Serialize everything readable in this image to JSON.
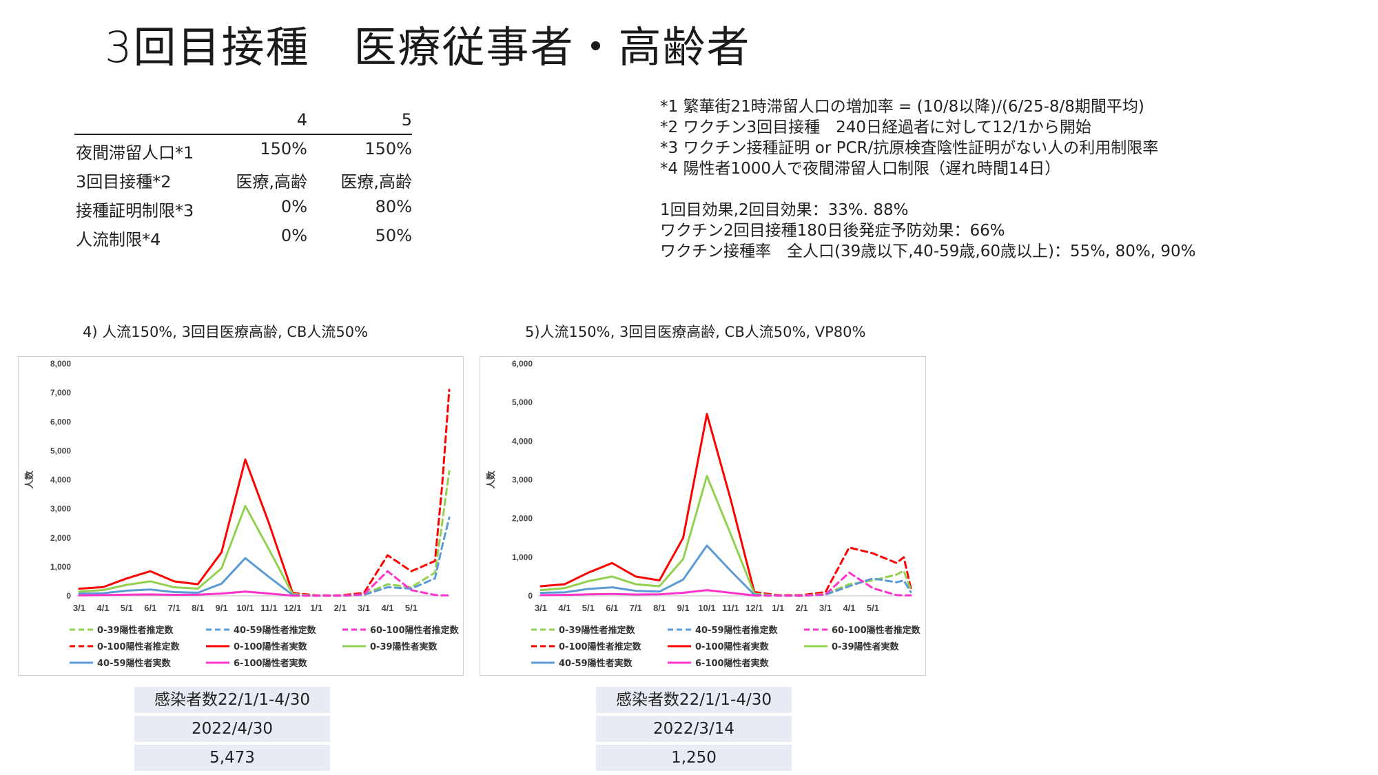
{
  "title": "3回目接種　医療従事者・高齢者",
  "params_table": {
    "columns": [
      "",
      "4",
      "5"
    ],
    "rows": [
      [
        "夜間滞留人口*1",
        "150%",
        "150%"
      ],
      [
        "3回目接種*2",
        "医療,高齢",
        "医療,高齢"
      ],
      [
        "接種証明制限*3",
        "0%",
        "80%"
      ],
      [
        "人流制限*4",
        "0%",
        "50%"
      ]
    ]
  },
  "notes": [
    "*1 繁華街21時滞留人口の増加率 = (10/8以降)/(6/25-8/8期間平均)",
    "*2 ワクチン3回目接種　240日経過者に対して12/1から開始",
    "*3 ワクチン接種証明 or PCR/抗原検査陰性証明がない人の利用制限率",
    "*4 陽性者1000人で夜間滞留人口制限（遅れ時間14日）",
    "",
    "1回目効果,2回目効果：33%. 88%",
    "ワクチン2回目接種180日後発症予防効果：66%",
    "ワクチン接種率　全人口(39歳以下,40-59歳,60歳以上)：55%, 80%, 90%"
  ],
  "legend": [
    {
      "label": "0-39陽性者推定数",
      "color": "#92d050",
      "dash": true
    },
    {
      "label": "40-59陽性者推定数",
      "color": "#5b9bd5",
      "dash": true
    },
    {
      "label": "60-100陽性者推定数",
      "color": "#ff33cc",
      "dash": true
    },
    {
      "label": "0-100陽性者推定数",
      "color": "#ff0000",
      "dash": true
    },
    {
      "label": "0-100陽性者実数",
      "color": "#ff0000",
      "dash": false
    },
    {
      "label": "0-39陽性者実数",
      "color": "#92d050",
      "dash": false
    },
    {
      "label": "40-59陽性者実数",
      "color": "#5b9bd5",
      "dash": false
    },
    {
      "label": "6-100陽性者実数",
      "color": "#ff33cc",
      "dash": false
    }
  ],
  "stats": [
    {
      "label": "感染者数22/1/1-4/30",
      "date": "2022/4/30",
      "value": "5,473"
    },
    {
      "label": "感染者数22/1/1-4/30",
      "date": "2022/3/14",
      "value": "1,250"
    }
  ],
  "chart_data": [
    {
      "type": "line",
      "title": "4) 人流150%, 3回目医療高齢, CB人流50%",
      "ylabel": "人数",
      "xlabel": "",
      "ylim": [
        0,
        8000
      ],
      "yticks": [
        "0",
        "1,000",
        "2,000",
        "3,000",
        "4,000",
        "5,000",
        "6,000",
        "7,000",
        "8,000"
      ],
      "xticks": [
        "3/1",
        "4/1",
        "5/1",
        "6/1",
        "7/1",
        "8/1",
        "9/1",
        "10/1",
        "11/1",
        "12/1",
        "1/1",
        "2/1",
        "3/1",
        "4/1",
        "5/1"
      ],
      "x_months": [
        0,
        1,
        2,
        3,
        4,
        5,
        6,
        7,
        8,
        9,
        10,
        11,
        12,
        13,
        14,
        15,
        15.3,
        15.6
      ],
      "series": [
        {
          "name": "0-100陽性者実数",
          "color": "#ff0000",
          "dash": false,
          "values": [
            250,
            300,
            600,
            850,
            500,
            400,
            1500,
            4700,
            2500,
            100,
            null,
            null,
            null,
            null,
            null,
            null,
            null,
            null
          ]
        },
        {
          "name": "0-39陽性者実数",
          "color": "#92d050",
          "dash": false,
          "values": [
            150,
            200,
            380,
            500,
            300,
            250,
            950,
            3100,
            1600,
            60,
            null,
            null,
            null,
            null,
            null,
            null,
            null,
            null
          ]
        },
        {
          "name": "40-59陽性者実数",
          "color": "#5b9bd5",
          "dash": false,
          "values": [
            80,
            90,
            180,
            220,
            130,
            110,
            420,
            1300,
            650,
            30,
            null,
            null,
            null,
            null,
            null,
            null,
            null,
            null
          ]
        },
        {
          "name": "6-100陽性者実数",
          "color": "#ff33cc",
          "dash": false,
          "values": [
            20,
            25,
            40,
            50,
            35,
            40,
            80,
            150,
            80,
            10,
            null,
            null,
            null,
            null,
            null,
            null,
            null,
            null
          ]
        },
        {
          "name": "0-100陽性者推定数",
          "color": "#ff0000",
          "dash": true,
          "values": [
            null,
            null,
            null,
            null,
            null,
            null,
            null,
            null,
            null,
            100,
            20,
            20,
            100,
            1400,
            850,
            1200,
            3800,
            7100
          ]
        },
        {
          "name": "0-39陽性者推定数",
          "color": "#92d050",
          "dash": true,
          "values": [
            null,
            null,
            null,
            null,
            null,
            null,
            null,
            null,
            null,
            60,
            10,
            10,
            50,
            400,
            300,
            800,
            2500,
            4300
          ]
        },
        {
          "name": "40-59陽性者推定数",
          "color": "#5b9bd5",
          "dash": true,
          "values": [
            null,
            null,
            null,
            null,
            null,
            null,
            null,
            null,
            null,
            30,
            5,
            5,
            30,
            300,
            250,
            600,
            1700,
            2700
          ]
        },
        {
          "name": "60-100陽性者推定数",
          "color": "#ff33cc",
          "dash": true,
          "values": [
            null,
            null,
            null,
            null,
            null,
            null,
            null,
            null,
            null,
            10,
            5,
            5,
            50,
            850,
            200,
            30,
            20,
            20
          ]
        }
      ]
    },
    {
      "type": "line",
      "title": "5)人流150%, 3回目医療高齢, CB人流50%, VP80%",
      "ylabel": "人数",
      "xlabel": "",
      "ylim": [
        0,
        6000
      ],
      "yticks": [
        "0",
        "1,000",
        "2,000",
        "3,000",
        "4,000",
        "5,000",
        "6,000"
      ],
      "xticks": [
        "3/1",
        "4/1",
        "5/1",
        "6/1",
        "7/1",
        "8/1",
        "9/1",
        "10/1",
        "11/1",
        "12/1",
        "1/1",
        "2/1",
        "3/1",
        "4/1",
        "5/1"
      ],
      "x_months": [
        0,
        1,
        2,
        3,
        4,
        5,
        6,
        7,
        8,
        9,
        10,
        11,
        12,
        13,
        14,
        15,
        15.3,
        15.6
      ],
      "series": [
        {
          "name": "0-100陽性者実数",
          "color": "#ff0000",
          "dash": false,
          "values": [
            250,
            300,
            600,
            850,
            500,
            400,
            1500,
            4700,
            2500,
            100,
            null,
            null,
            null,
            null,
            null,
            null,
            null,
            null
          ]
        },
        {
          "name": "0-39陽性者実数",
          "color": "#92d050",
          "dash": false,
          "values": [
            150,
            200,
            380,
            500,
            300,
            250,
            950,
            3100,
            1600,
            60,
            null,
            null,
            null,
            null,
            null,
            null,
            null,
            null
          ]
        },
        {
          "name": "40-59陽性者実数",
          "color": "#5b9bd5",
          "dash": false,
          "values": [
            80,
            90,
            180,
            220,
            130,
            110,
            420,
            1300,
            650,
            30,
            null,
            null,
            null,
            null,
            null,
            null,
            null,
            null
          ]
        },
        {
          "name": "6-100陽性者実数",
          "color": "#ff33cc",
          "dash": false,
          "values": [
            20,
            25,
            40,
            50,
            35,
            40,
            80,
            150,
            80,
            10,
            null,
            null,
            null,
            null,
            null,
            null,
            null,
            null
          ]
        },
        {
          "name": "0-100陽性者推定数",
          "color": "#ff0000",
          "dash": true,
          "values": [
            null,
            null,
            null,
            null,
            null,
            null,
            null,
            null,
            null,
            100,
            20,
            20,
            100,
            1250,
            1100,
            850,
            1000,
            200
          ]
        },
        {
          "name": "0-39陽性者推定数",
          "color": "#92d050",
          "dash": true,
          "values": [
            null,
            null,
            null,
            null,
            null,
            null,
            null,
            null,
            null,
            60,
            10,
            10,
            50,
            300,
            400,
            550,
            650,
            150
          ]
        },
        {
          "name": "40-59陽性者推定数",
          "color": "#5b9bd5",
          "dash": true,
          "values": [
            null,
            null,
            null,
            null,
            null,
            null,
            null,
            null,
            null,
            30,
            5,
            5,
            30,
            250,
            450,
            350,
            400,
            100
          ]
        },
        {
          "name": "60-100陽性者推定数",
          "color": "#ff33cc",
          "dash": true,
          "values": [
            null,
            null,
            null,
            null,
            null,
            null,
            null,
            null,
            null,
            10,
            5,
            5,
            40,
            600,
            200,
            20,
            15,
            15
          ]
        }
      ]
    }
  ]
}
